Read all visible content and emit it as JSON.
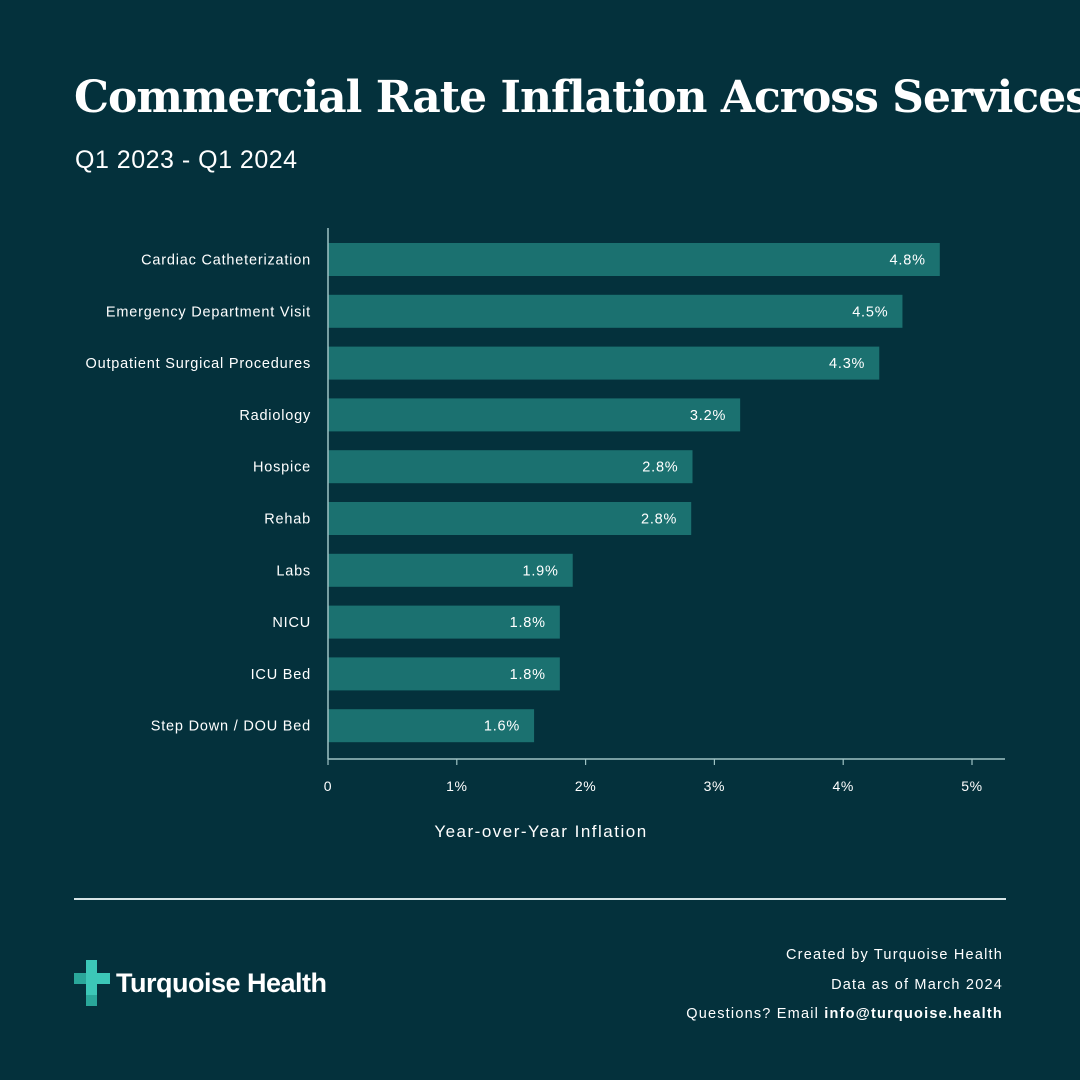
{
  "header": {
    "title": "Commercial Rate Inflation Across Services",
    "subtitle": "Q1 2023 - Q1 2024"
  },
  "colors": {
    "background": "#04313c",
    "bar": "#1b7170",
    "axis": "#9fc3c4",
    "text": "#ffffff",
    "logo_accent": "#3cc7b7"
  },
  "chart_data": {
    "type": "bar",
    "orientation": "horizontal",
    "title": "Commercial Rate Inflation Across Services",
    "subtitle": "Q1 2023 - Q1 2024",
    "categories": [
      "Cardiac Catheterization",
      "Emergency Department Visit",
      "Outpatient Surgical Procedures",
      "Radiology",
      "Hospice",
      "Rehab",
      "Labs",
      "NICU",
      "ICU Bed",
      "Step Down / DOU Bed"
    ],
    "values": [
      4.75,
      4.46,
      4.28,
      3.2,
      2.83,
      2.82,
      1.9,
      1.8,
      1.8,
      1.6
    ],
    "data_labels": [
      "4.8%",
      "4.5%",
      "4.3%",
      "3.2%",
      "2.8%",
      "2.8%",
      "1.9%",
      "1.8%",
      "1.8%",
      "1.6%"
    ],
    "xlabel": "Year-over-Year Inflation",
    "ylabel": "",
    "xlim": [
      0,
      5.3
    ],
    "xticks": [
      0,
      1,
      2,
      3,
      4,
      5
    ],
    "xtick_labels": [
      "0",
      "1%",
      "2%",
      "3%",
      "4%",
      "5%"
    ],
    "grid": false,
    "legend": "none"
  },
  "footer": {
    "created_by": "Created by Turquoise Health",
    "data_as_of": "Data as of March 2024",
    "questions": "Questions?  Email",
    "email": "info@turquoise.health"
  },
  "brand": {
    "name": "Turquoise Health",
    "logo_icon": "medical-cross-icon"
  }
}
